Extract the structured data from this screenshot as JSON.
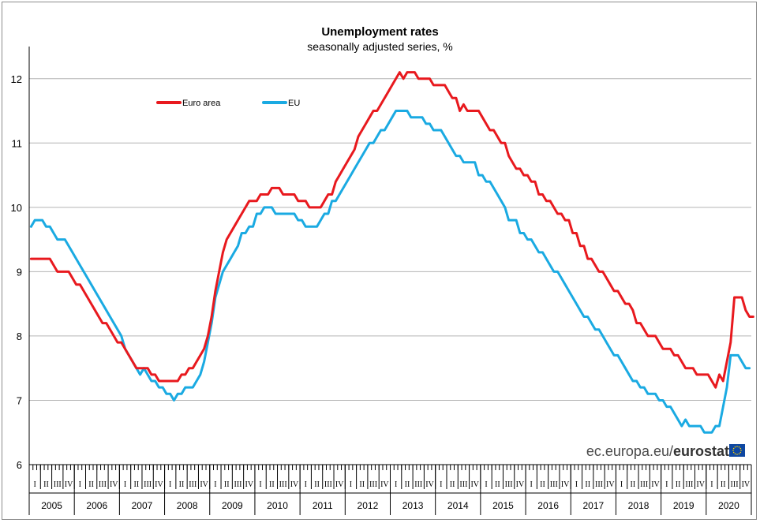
{
  "chart_data": {
    "type": "line",
    "title": "Unemployment rates",
    "subtitle": "seasonally adjusted series, %",
    "ylim": [
      6,
      12.5
    ],
    "yticks": [
      "6",
      "7",
      "8",
      "9",
      "10",
      "11",
      "12"
    ],
    "grid": true,
    "legend_position": "top-left",
    "years": [
      "2005",
      "2006",
      "2007",
      "2008",
      "2009",
      "2010",
      "2011",
      "2012",
      "2013",
      "2014",
      "2015",
      "2016",
      "2017",
      "2018",
      "2019",
      "2020"
    ],
    "quarter_labels": [
      "I",
      "II",
      "III",
      "IV"
    ],
    "frequency": "monthly",
    "start": "2005-01",
    "series": [
      {
        "name": "Euro area",
        "color": "#e8191e",
        "values": [
          9.2,
          9.2,
          9.2,
          9.2,
          9.2,
          9.2,
          9.1,
          9.0,
          9.0,
          9.0,
          9.0,
          8.9,
          8.8,
          8.8,
          8.7,
          8.6,
          8.5,
          8.4,
          8.3,
          8.2,
          8.2,
          8.1,
          8.0,
          7.9,
          7.9,
          7.8,
          7.7,
          7.6,
          7.5,
          7.5,
          7.5,
          7.5,
          7.4,
          7.4,
          7.3,
          7.3,
          7.3,
          7.3,
          7.3,
          7.3,
          7.4,
          7.4,
          7.5,
          7.5,
          7.6,
          7.7,
          7.8,
          8.0,
          8.3,
          8.7,
          9.0,
          9.3,
          9.5,
          9.6,
          9.7,
          9.8,
          9.9,
          10.0,
          10.1,
          10.1,
          10.1,
          10.2,
          10.2,
          10.2,
          10.3,
          10.3,
          10.3,
          10.2,
          10.2,
          10.2,
          10.2,
          10.1,
          10.1,
          10.1,
          10.0,
          10.0,
          10.0,
          10.0,
          10.1,
          10.2,
          10.2,
          10.4,
          10.5,
          10.6,
          10.7,
          10.8,
          10.9,
          11.1,
          11.2,
          11.3,
          11.4,
          11.5,
          11.5,
          11.6,
          11.7,
          11.8,
          11.9,
          12.0,
          12.1,
          12.0,
          12.1,
          12.1,
          12.1,
          12.0,
          12.0,
          12.0,
          12.0,
          11.9,
          11.9,
          11.9,
          11.9,
          11.8,
          11.7,
          11.7,
          11.5,
          11.6,
          11.5,
          11.5,
          11.5,
          11.5,
          11.4,
          11.3,
          11.2,
          11.2,
          11.1,
          11.0,
          11.0,
          10.8,
          10.7,
          10.6,
          10.6,
          10.5,
          10.5,
          10.4,
          10.4,
          10.2,
          10.2,
          10.1,
          10.1,
          10.0,
          9.9,
          9.9,
          9.8,
          9.8,
          9.6,
          9.6,
          9.4,
          9.4,
          9.2,
          9.2,
          9.1,
          9.0,
          9.0,
          8.9,
          8.8,
          8.7,
          8.7,
          8.6,
          8.5,
          8.5,
          8.4,
          8.2,
          8.2,
          8.1,
          8.0,
          8.0,
          8.0,
          7.9,
          7.8,
          7.8,
          7.8,
          7.7,
          7.7,
          7.6,
          7.5,
          7.5,
          7.5,
          7.4,
          7.4,
          7.4,
          7.4,
          7.3,
          7.2,
          7.4,
          7.3,
          7.6,
          7.9,
          8.6,
          8.6,
          8.6,
          8.4,
          8.3,
          8.3
        ]
      },
      {
        "name": "EU",
        "color": "#1aaae2",
        "values": [
          9.7,
          9.8,
          9.8,
          9.8,
          9.7,
          9.7,
          9.6,
          9.5,
          9.5,
          9.5,
          9.4,
          9.3,
          9.2,
          9.1,
          9.0,
          8.9,
          8.8,
          8.7,
          8.6,
          8.5,
          8.4,
          8.3,
          8.2,
          8.1,
          8.0,
          7.8,
          7.7,
          7.6,
          7.5,
          7.4,
          7.5,
          7.4,
          7.3,
          7.3,
          7.2,
          7.2,
          7.1,
          7.1,
          7.0,
          7.1,
          7.1,
          7.2,
          7.2,
          7.2,
          7.3,
          7.4,
          7.6,
          7.9,
          8.2,
          8.6,
          8.8,
          9.0,
          9.1,
          9.2,
          9.3,
          9.4,
          9.6,
          9.6,
          9.7,
          9.7,
          9.9,
          9.9,
          10.0,
          10.0,
          10.0,
          9.9,
          9.9,
          9.9,
          9.9,
          9.9,
          9.9,
          9.8,
          9.8,
          9.7,
          9.7,
          9.7,
          9.7,
          9.8,
          9.9,
          9.9,
          10.1,
          10.1,
          10.2,
          10.3,
          10.4,
          10.5,
          10.6,
          10.7,
          10.8,
          10.9,
          11.0,
          11.0,
          11.1,
          11.2,
          11.2,
          11.3,
          11.4,
          11.5,
          11.5,
          11.5,
          11.5,
          11.4,
          11.4,
          11.4,
          11.4,
          11.3,
          11.3,
          11.2,
          11.2,
          11.2,
          11.1,
          11.0,
          10.9,
          10.8,
          10.8,
          10.7,
          10.7,
          10.7,
          10.7,
          10.5,
          10.5,
          10.4,
          10.4,
          10.3,
          10.2,
          10.1,
          10.0,
          9.8,
          9.8,
          9.8,
          9.6,
          9.6,
          9.5,
          9.5,
          9.4,
          9.3,
          9.3,
          9.2,
          9.1,
          9.0,
          9.0,
          8.9,
          8.8,
          8.7,
          8.6,
          8.5,
          8.4,
          8.3,
          8.3,
          8.2,
          8.1,
          8.1,
          8.0,
          7.9,
          7.8,
          7.7,
          7.7,
          7.6,
          7.5,
          7.4,
          7.3,
          7.3,
          7.2,
          7.2,
          7.1,
          7.1,
          7.1,
          7.0,
          7.0,
          6.9,
          6.9,
          6.8,
          6.7,
          6.6,
          6.7,
          6.6,
          6.6,
          6.6,
          6.6,
          6.5,
          6.5,
          6.5,
          6.6,
          6.6,
          6.9,
          7.2,
          7.7,
          7.7,
          7.7,
          7.6,
          7.5,
          7.5
        ]
      }
    ]
  },
  "footer": {
    "brand_light": "ec.europa.eu/",
    "brand_bold": "eurostat",
    "flag_name": "eu-flag-icon"
  }
}
